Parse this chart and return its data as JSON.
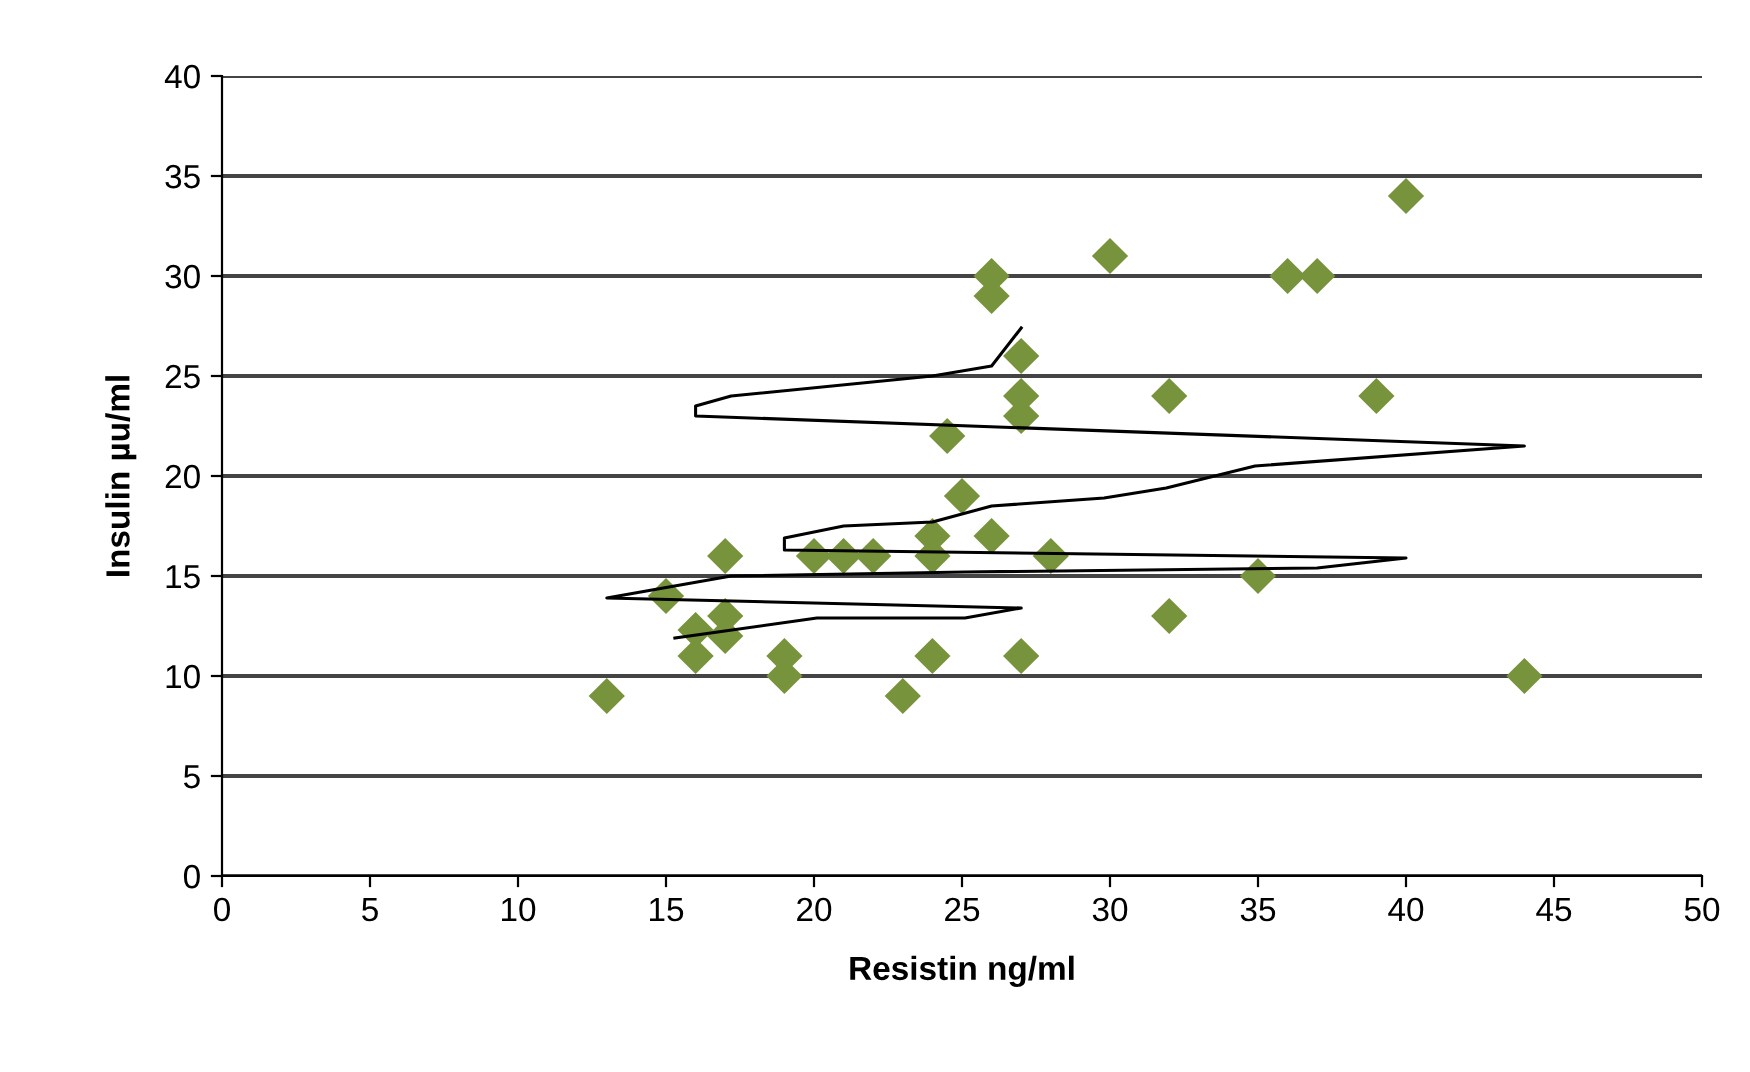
{
  "chart_data": {
    "type": "scatter",
    "xlabel": "Resistin ng/ml",
    "ylabel": "Insulin µu/ml",
    "xlim": [
      0,
      50
    ],
    "xticks": [
      0,
      5,
      10,
      15,
      20,
      25,
      30,
      35,
      40,
      45,
      50
    ],
    "ylim": [
      0,
      40
    ],
    "yticks": [
      0,
      5,
      10,
      15,
      20,
      25,
      30,
      35,
      40
    ],
    "grid": "y",
    "legend": false,
    "series": [
      {
        "color": "#77933c",
        "marker": "diamond",
        "x": [
          13,
          15,
          16,
          16,
          17,
          17,
          17,
          19,
          19,
          20,
          21,
          22,
          23,
          24,
          24,
          24,
          24.5,
          25,
          26,
          26,
          26,
          27,
          27,
          27,
          27,
          28,
          30,
          32,
          32,
          35,
          36,
          37,
          39,
          40,
          44
        ],
        "values": [
          9,
          14,
          12.3,
          11,
          16,
          13,
          12,
          11,
          10,
          16,
          16,
          16,
          9,
          17,
          16,
          11,
          22,
          19,
          30,
          29,
          17,
          26,
          24,
          23,
          11,
          16,
          31,
          24,
          13,
          15,
          30,
          30,
          24,
          34,
          10
        ]
      },
      {
        "type": "line",
        "color": "#000000",
        "marker": "none",
        "line_style": "solid",
        "x": [
          15.3,
          20.1,
          25.1,
          27,
          13,
          17.2,
          25.1,
          37,
          40,
          19,
          19,
          21,
          24,
          26,
          29.8,
          31.9,
          34.9,
          44,
          16,
          16,
          17.2,
          24,
          26,
          27
        ],
        "values": [
          11.9,
          12.9,
          12.9,
          13.4,
          13.9,
          15,
          15.2,
          15.4,
          15.9,
          16.3,
          16.9,
          17.5,
          17.7,
          18.5,
          18.9,
          19.4,
          20.5,
          21.5,
          23,
          23.5,
          24,
          25,
          25.5,
          27.4
        ]
      }
    ]
  }
}
